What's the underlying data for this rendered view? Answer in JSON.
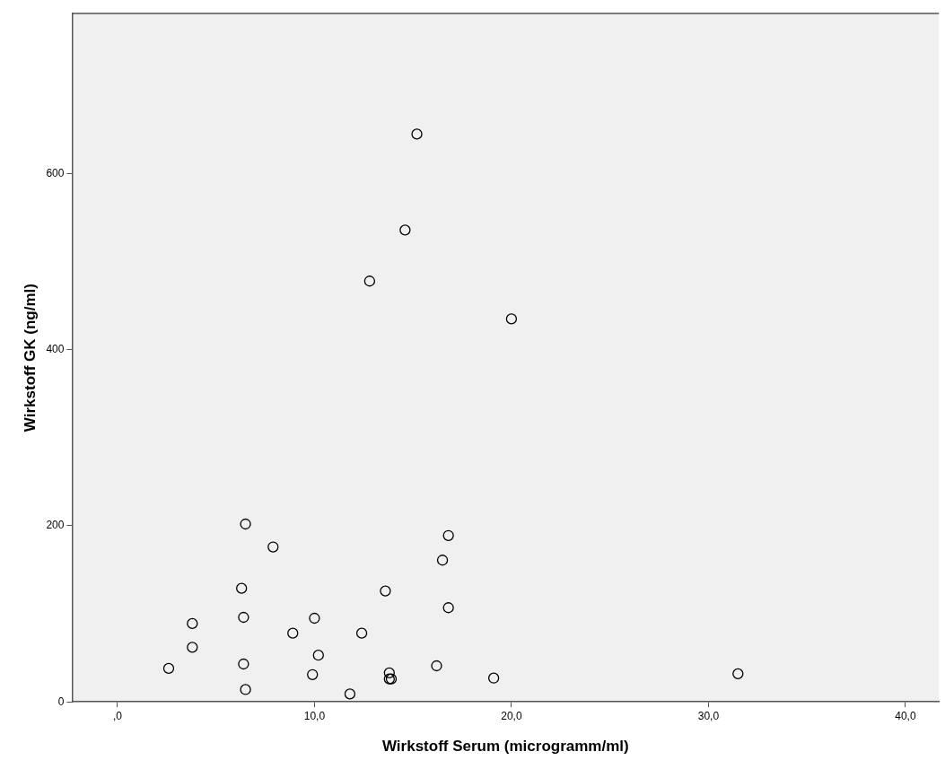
{
  "chart_data": {
    "type": "scatter",
    "xlabel": "Wirkstoff Serum (microgramm/ml)",
    "ylabel": "Wirkstoff GK (ng/ml)",
    "xlim": [
      -2.3,
      41.7
    ],
    "ylim": [
      0,
      782
    ],
    "xticks": [
      {
        "value": 0,
        "label": ",0"
      },
      {
        "value": 10,
        "label": "10,0"
      },
      {
        "value": 20,
        "label": "20,0"
      },
      {
        "value": 30,
        "label": "30,0"
      },
      {
        "value": 40,
        "label": "40,0"
      }
    ],
    "yticks": [
      0,
      200,
      400,
      600
    ],
    "marker": "circle",
    "grid": false,
    "legend": false,
    "series": [
      {
        "color": "#000000",
        "x": [
          2.6,
          3.8,
          3.8,
          6.3,
          6.4,
          6.4,
          6.5,
          6.5,
          7.9,
          8.9,
          9.9,
          10.0,
          10.2,
          11.8,
          12.4,
          12.8,
          13.6,
          13.8,
          13.8,
          13.9,
          14.6,
          15.2,
          16.2,
          16.5,
          16.8,
          16.8,
          19.1,
          20.0,
          31.5
        ],
        "values": [
          38,
          89,
          62,
          129,
          96,
          43,
          202,
          14,
          176,
          78,
          31,
          95,
          53,
          9,
          78,
          478,
          126,
          33,
          26,
          26,
          536,
          645,
          41,
          161,
          189,
          107,
          27,
          435,
          32
        ]
      }
    ]
  }
}
